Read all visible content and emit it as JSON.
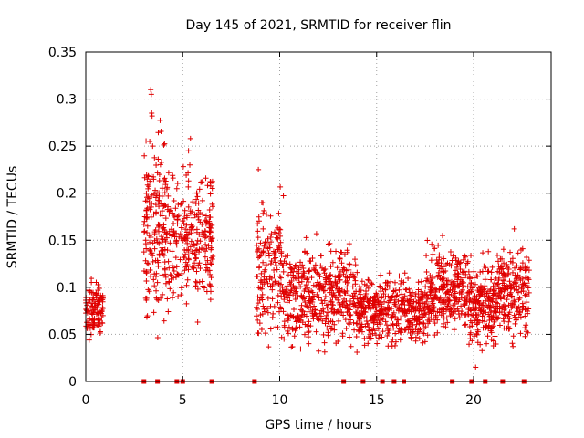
{
  "chart_data": {
    "type": "scatter",
    "title": "Day 145 of 2021, SRMTID for receiver flin",
    "xlabel": "GPS time / hours",
    "ylabel": "SRMTID / TECUs",
    "xlim": [
      0,
      24
    ],
    "ylim": [
      0,
      0.35
    ],
    "x_ticks": [
      0,
      5,
      10,
      15,
      20
    ],
    "x_tick_labels": [
      "0",
      "5",
      "10",
      "15",
      "20"
    ],
    "y_ticks": [
      0,
      0.05,
      0.1,
      0.15,
      0.2,
      0.25,
      0.3,
      0.35
    ],
    "y_tick_labels": [
      "0",
      "0.05",
      "0.1",
      "0.15",
      "0.2",
      "0.25",
      "0.3",
      "0.35"
    ],
    "grid": true,
    "marker": "+",
    "color": "#e00000",
    "markers_at_zero": [
      3.0,
      3.7,
      4.7,
      5.0,
      6.5,
      8.7,
      13.3,
      14.3,
      15.3,
      15.9,
      16.4,
      18.9,
      19.9,
      20.6,
      21.5,
      22.6
    ],
    "series": [
      {
        "name": "SRMTID",
        "segments": [
          {
            "t0": 0.0,
            "t1": 0.9,
            "n": 110,
            "lo": 0.035,
            "hi": 0.12
          },
          {
            "t0": 3.0,
            "t1": 4.2,
            "n": 180,
            "lo": 0.03,
            "hi": 0.3
          },
          {
            "t0": 4.2,
            "t1": 6.6,
            "n": 260,
            "lo": 0.055,
            "hi": 0.25
          },
          {
            "t0": 8.8,
            "t1": 10.2,
            "n": 160,
            "lo": 0.02,
            "hi": 0.22
          },
          {
            "t0": 10.2,
            "t1": 14.0,
            "n": 420,
            "lo": 0.02,
            "hi": 0.16
          },
          {
            "t0": 14.0,
            "t1": 17.5,
            "n": 400,
            "lo": 0.03,
            "hi": 0.12
          },
          {
            "t0": 17.5,
            "t1": 19.5,
            "n": 250,
            "lo": 0.04,
            "hi": 0.155
          },
          {
            "t0": 19.5,
            "t1": 21.2,
            "n": 230,
            "lo": 0.015,
            "hi": 0.145
          },
          {
            "t0": 21.2,
            "t1": 22.9,
            "n": 200,
            "lo": 0.03,
            "hi": 0.16
          }
        ],
        "highlights": [
          {
            "x": 3.35,
            "y": 0.31
          },
          {
            "x": 3.38,
            "y": 0.305
          },
          {
            "x": 3.4,
            "y": 0.285
          },
          {
            "x": 3.42,
            "y": 0.282
          },
          {
            "x": 3.3,
            "y": 0.255
          },
          {
            "x": 3.45,
            "y": 0.25
          },
          {
            "x": 5.4,
            "y": 0.258
          },
          {
            "x": 5.3,
            "y": 0.245
          },
          {
            "x": 8.9,
            "y": 0.225
          },
          {
            "x": 11.9,
            "y": 0.157
          },
          {
            "x": 22.1,
            "y": 0.162
          },
          {
            "x": 18.4,
            "y": 0.155
          }
        ]
      }
    ]
  }
}
